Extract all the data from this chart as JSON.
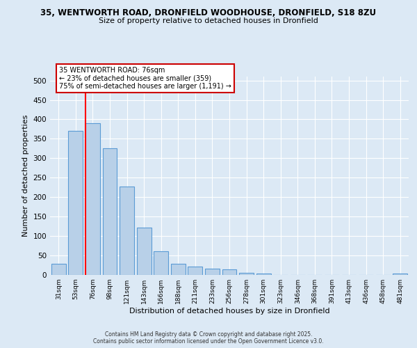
{
  "title_line1": "35, WENTWORTH ROAD, DRONFIELD WOODHOUSE, DRONFIELD, S18 8ZU",
  "title_line2": "Size of property relative to detached houses in Dronfield",
  "xlabel": "Distribution of detached houses by size in Dronfield",
  "ylabel": "Number of detached properties",
  "bar_labels": [
    "31sqm",
    "53sqm",
    "76sqm",
    "98sqm",
    "121sqm",
    "143sqm",
    "166sqm",
    "188sqm",
    "211sqm",
    "233sqm",
    "256sqm",
    "278sqm",
    "301sqm",
    "323sqm",
    "346sqm",
    "368sqm",
    "391sqm",
    "413sqm",
    "436sqm",
    "458sqm",
    "481sqm"
  ],
  "bar_values": [
    28,
    370,
    390,
    325,
    228,
    122,
    60,
    28,
    22,
    17,
    15,
    6,
    4,
    0,
    0,
    0,
    0,
    0,
    0,
    0,
    4
  ],
  "bar_color": "#b8d0e8",
  "bar_edge_color": "#5b9bd5",
  "red_line_index": 2,
  "annotation_title": "35 WENTWORTH ROAD: 76sqm",
  "annotation_line2": "← 23% of detached houses are smaller (359)",
  "annotation_line3": "75% of semi-detached houses are larger (1,191) →",
  "annotation_box_facecolor": "#ffffff",
  "annotation_box_edgecolor": "#cc0000",
  "background_color": "#dce9f5",
  "grid_color": "#ffffff",
  "footer_line1": "Contains HM Land Registry data © Crown copyright and database right 2025.",
  "footer_line2": "Contains public sector information licensed under the Open Government Licence v3.0.",
  "ylim": [
    0,
    510
  ],
  "yticks": [
    0,
    50,
    100,
    150,
    200,
    250,
    300,
    350,
    400,
    450,
    500
  ]
}
